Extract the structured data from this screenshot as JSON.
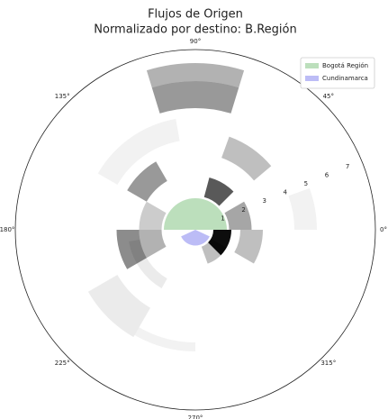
{
  "chart_data": {
    "type": "polar_heat",
    "title": "Flujos de Origen",
    "subtitle": "Normalizado por destino: B.Región",
    "rlim": [
      0,
      8
    ],
    "rticks": [
      1,
      2,
      3,
      4,
      5,
      6,
      7
    ],
    "rtick_angle": 22.5,
    "thetaticks": [
      {
        "value": 0,
        "label": "0°"
      },
      {
        "value": 45,
        "label": "45°"
      },
      {
        "value": 90,
        "label": "90°"
      },
      {
        "value": 135,
        "label": "135°"
      },
      {
        "value": 180,
        "label": "180°"
      },
      {
        "value": 225,
        "label": "225°"
      },
      {
        "value": 270,
        "label": "270°"
      },
      {
        "value": 315,
        "label": "315°"
      }
    ],
    "legend": "upper right",
    "series": [
      {
        "name": "Bogotá Región",
        "color": "#8fc98f",
        "theta": [
          0,
          180
        ],
        "r": [
          0,
          1.4
        ]
      },
      {
        "name": "Cundinamarca",
        "color": "#8f8ff0",
        "theta": [
          205,
          335
        ],
        "r": [
          0,
          0.7
        ]
      }
    ],
    "cells": [
      {
        "theta": [
          73,
          107
        ],
        "r": [
          5.4,
          6.6
        ],
        "value": 0.4
      },
      {
        "theta": [
          73,
          107
        ],
        "r": [
          6.6,
          7.4
        ],
        "value": 0.3
      },
      {
        "theta": [
          100,
          150
        ],
        "r": [
          4,
          5
        ],
        "value": 0.05
      },
      {
        "theta": [
          40,
          70
        ],
        "r": [
          3.4,
          4.4
        ],
        "value": 0.25
      },
      {
        "theta": [
          0,
          20
        ],
        "r": [
          4.4,
          5.4
        ],
        "value": 0.05
      },
      {
        "theta": [
          45,
          75
        ],
        "r": [
          1.5,
          2.4
        ],
        "value": 0.65
      },
      {
        "theta": [
          0,
          30
        ],
        "r": [
          1.5,
          2.5
        ],
        "value": 0.35
      },
      {
        "theta": [
          120,
          150
        ],
        "r": [
          2.5,
          3.5
        ],
        "value": 0.4
      },
      {
        "theta": [
          150,
          180
        ],
        "r": [
          1.5,
          2.5
        ],
        "value": 0.2
      },
      {
        "theta": [
          180,
          210
        ],
        "r": [
          2.5,
          3.5
        ],
        "value": 0.45
      },
      {
        "theta": [
          180,
          210
        ],
        "r": [
          1.5,
          2.5
        ],
        "value": 0.3
      },
      {
        "theta": [
          315,
          360
        ],
        "r": [
          0.8,
          1.6
        ],
        "value": 0.95
      },
      {
        "theta": [
          290,
          330
        ],
        "r": [
          0.8,
          1.6
        ],
        "value": 0.25
      },
      {
        "theta": [
          330,
          360
        ],
        "r": [
          2,
          3
        ],
        "value": 0.25
      },
      {
        "theta": [
          210,
          240
        ],
        "r": [
          4,
          5.5
        ],
        "value": 0.08
      },
      {
        "theta": [
          240,
          270
        ],
        "r": [
          5,
          5.4
        ],
        "value": 0.05
      },
      {
        "theta": [
          190,
          240
        ],
        "r": [
          2.5,
          3
        ],
        "value": 0.08
      }
    ]
  }
}
